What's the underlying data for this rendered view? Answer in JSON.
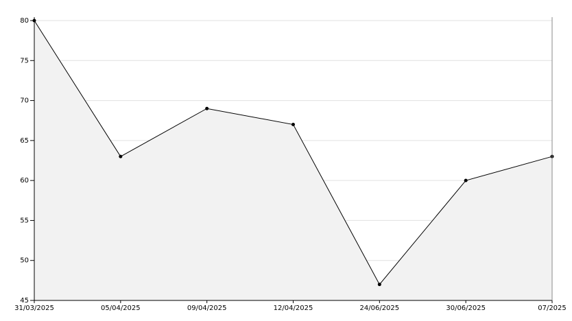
{
  "chart_data": {
    "type": "area",
    "categories": [
      "31/03/2025",
      "05/04/2025",
      "09/04/2025",
      "12/04/2025",
      "24/06/2025",
      "30/06/2025",
      "07/2025"
    ],
    "values": [
      80,
      63,
      69,
      67,
      47,
      60,
      63
    ],
    "color": "#000000",
    "fill": "#f2f2f2",
    "ylim": [
      45,
      80
    ],
    "yticks": [
      45,
      50,
      55,
      60,
      65,
      70,
      75,
      80
    ],
    "grid": true
  }
}
